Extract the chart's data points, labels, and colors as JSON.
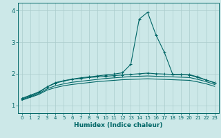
{
  "title": "",
  "xlabel": "Humidex (Indice chaleur)",
  "xlim": [
    -0.5,
    23.5
  ],
  "ylim": [
    0.75,
    4.25
  ],
  "bg_color": "#cce8e8",
  "grid_color": "#aacccc",
  "line_color": "#006666",
  "x": [
    0,
    1,
    2,
    3,
    4,
    5,
    6,
    7,
    8,
    9,
    10,
    11,
    12,
    13,
    14,
    15,
    16,
    17,
    18,
    19,
    20,
    21,
    22,
    23
  ],
  "line1": [
    1.22,
    1.32,
    1.42,
    1.58,
    1.72,
    1.78,
    1.83,
    1.87,
    1.9,
    1.93,
    1.96,
    1.99,
    2.03,
    2.3,
    3.73,
    3.95,
    3.23,
    2.68,
    1.98,
    1.97,
    1.97,
    1.9,
    1.8,
    1.72
  ],
  "line2": [
    1.2,
    1.3,
    1.4,
    1.58,
    1.7,
    1.77,
    1.82,
    1.85,
    1.88,
    1.9,
    1.92,
    1.94,
    1.96,
    1.98,
    2.0,
    2.02,
    2.0,
    1.99,
    1.98,
    1.97,
    1.96,
    1.88,
    1.8,
    1.71
  ],
  "line3": [
    1.18,
    1.27,
    1.37,
    1.52,
    1.62,
    1.68,
    1.73,
    1.76,
    1.79,
    1.82,
    1.85,
    1.87,
    1.89,
    1.91,
    1.92,
    1.93,
    1.92,
    1.91,
    1.9,
    1.89,
    1.88,
    1.82,
    1.75,
    1.66
  ],
  "line4": [
    1.16,
    1.25,
    1.34,
    1.48,
    1.56,
    1.62,
    1.66,
    1.69,
    1.72,
    1.75,
    1.77,
    1.79,
    1.81,
    1.82,
    1.83,
    1.84,
    1.83,
    1.82,
    1.81,
    1.8,
    1.79,
    1.74,
    1.68,
    1.6
  ],
  "yticks": [
    1,
    2,
    3,
    4
  ],
  "xticks": [
    0,
    1,
    2,
    3,
    4,
    5,
    6,
    7,
    8,
    9,
    10,
    11,
    12,
    13,
    14,
    15,
    16,
    17,
    18,
    19,
    20,
    21,
    22,
    23
  ]
}
